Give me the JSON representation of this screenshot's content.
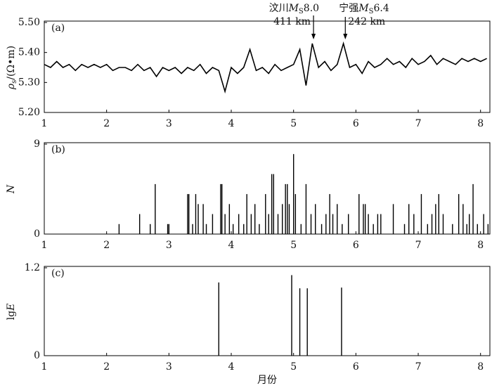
{
  "chart_data": [
    {
      "type": "line",
      "label": "(a)",
      "y_label": {
        "symbol": "ρ",
        "sub": "s",
        "rest": "/(Ω•m)"
      },
      "annotations": [
        {
          "text": "汶川",
          "symbol": "M",
          "sub": "S",
          "magnitude": "8.0",
          "distance": "411 km",
          "x": 5.32
        },
        {
          "text": "宁强",
          "symbol": "M",
          "sub": "S",
          "magnitude": "6.4",
          "distance": "242 km",
          "x": 5.83
        }
      ],
      "x": [
        1,
        1.1,
        1.2,
        1.3,
        1.4,
        1.5,
        1.6,
        1.7,
        1.8,
        1.9,
        2,
        2.1,
        2.2,
        2.3,
        2.4,
        2.5,
        2.6,
        2.7,
        2.8,
        2.9,
        3,
        3.1,
        3.2,
        3.3,
        3.4,
        3.5,
        3.6,
        3.7,
        3.8,
        3.9,
        4,
        4.1,
        4.2,
        4.3,
        4.4,
        4.5,
        4.6,
        4.7,
        4.8,
        4.9,
        5,
        5.1,
        5.2,
        5.3,
        5.4,
        5.5,
        5.6,
        5.7,
        5.8,
        5.9,
        6,
        6.1,
        6.2,
        6.3,
        6.4,
        6.5,
        6.6,
        6.7,
        6.8,
        6.9,
        7,
        7.1,
        7.2,
        7.3,
        7.4,
        7.5,
        7.6,
        7.7,
        7.8,
        7.9,
        8,
        8.1
      ],
      "values": [
        5.36,
        5.35,
        5.37,
        5.35,
        5.36,
        5.34,
        5.36,
        5.35,
        5.36,
        5.35,
        5.36,
        5.34,
        5.35,
        5.35,
        5.34,
        5.36,
        5.34,
        5.35,
        5.32,
        5.35,
        5.34,
        5.35,
        5.33,
        5.35,
        5.34,
        5.36,
        5.33,
        5.35,
        5.34,
        5.27,
        5.35,
        5.33,
        5.35,
        5.41,
        5.34,
        5.35,
        5.33,
        5.36,
        5.34,
        5.35,
        5.36,
        5.41,
        5.29,
        5.43,
        5.35,
        5.37,
        5.34,
        5.36,
        5.43,
        5.35,
        5.36,
        5.33,
        5.37,
        5.35,
        5.36,
        5.38,
        5.36,
        5.37,
        5.35,
        5.38,
        5.36,
        5.37,
        5.39,
        5.36,
        5.38,
        5.37,
        5.36,
        5.38,
        5.37,
        5.38,
        5.37,
        5.38
      ],
      "color": "#000000",
      "xlim": [
        1,
        8.15
      ],
      "xticks": [
        1,
        2,
        3,
        4,
        5,
        6,
        7,
        8
      ],
      "ylim": [
        5.2,
        5.5
      ],
      "yticks": [
        {
          "value": 5.2,
          "label": "5.20"
        },
        {
          "value": 5.3,
          "label": "5.30"
        },
        {
          "value": 5.4,
          "label": "5.40"
        },
        {
          "value": 5.5,
          "label": "5.50"
        }
      ]
    },
    {
      "type": "stem",
      "label": "(b)",
      "y_label": "N",
      "x": [
        2.2,
        2.53,
        2.7,
        2.78,
        2.98,
        3.0,
        3.3,
        3.32,
        3.38,
        3.43,
        3.47,
        3.55,
        3.6,
        3.7,
        3.83,
        3.85,
        3.9,
        3.97,
        4.03,
        4.12,
        4.2,
        4.25,
        4.32,
        4.38,
        4.45,
        4.55,
        4.6,
        4.65,
        4.68,
        4.75,
        4.82,
        4.87,
        4.9,
        4.93,
        5.0,
        5.03,
        5.12,
        5.2,
        5.28,
        5.35,
        5.45,
        5.52,
        5.58,
        5.63,
        5.7,
        5.78,
        5.88,
        6.05,
        6.12,
        6.15,
        6.2,
        6.28,
        6.35,
        6.4,
        6.6,
        6.78,
        6.85,
        6.93,
        7.05,
        7.15,
        7.22,
        7.28,
        7.33,
        7.4,
        7.55,
        7.65,
        7.72,
        7.78,
        7.82,
        7.88,
        7.95,
        8.05,
        8.12
      ],
      "values": [
        1,
        2,
        1,
        5,
        1,
        1,
        4,
        4,
        1,
        4,
        3,
        3,
        1,
        2,
        5,
        5,
        2,
        3,
        1,
        2,
        1,
        4,
        2,
        3,
        1,
        4,
        2,
        6,
        6,
        2,
        3,
        5,
        5,
        3,
        8,
        4,
        1,
        5,
        2,
        3,
        1,
        2,
        4,
        2,
        3,
        1,
        2,
        4,
        3,
        3,
        2,
        1,
        2,
        2,
        3,
        1,
        3,
        2,
        4,
        1,
        2,
        3,
        4,
        2,
        1,
        4,
        3,
        1,
        2,
        5,
        1,
        2,
        1
      ],
      "color": "#000000",
      "xlim": [
        1,
        8.15
      ],
      "xticks": [
        1,
        2,
        3,
        4,
        5,
        6,
        7,
        8
      ],
      "ylim": [
        0,
        9
      ],
      "yticks": [
        0,
        9
      ]
    },
    {
      "type": "stem",
      "label": "(c)",
      "y_label": {
        "prefix": "lg",
        "symbol": "E"
      },
      "x_label": "月份",
      "x": [
        3.8,
        4.97,
        5.1,
        5.22,
        5.77
      ],
      "values": [
        1.0,
        1.1,
        0.92,
        0.92,
        0.93
      ],
      "color": "#000000",
      "xlim": [
        1,
        8.15
      ],
      "xticks": [
        1,
        2,
        3,
        4,
        5,
        6,
        7,
        8
      ],
      "ylim": [
        0,
        1.2
      ],
      "yticks": [
        0,
        1.2
      ]
    }
  ]
}
